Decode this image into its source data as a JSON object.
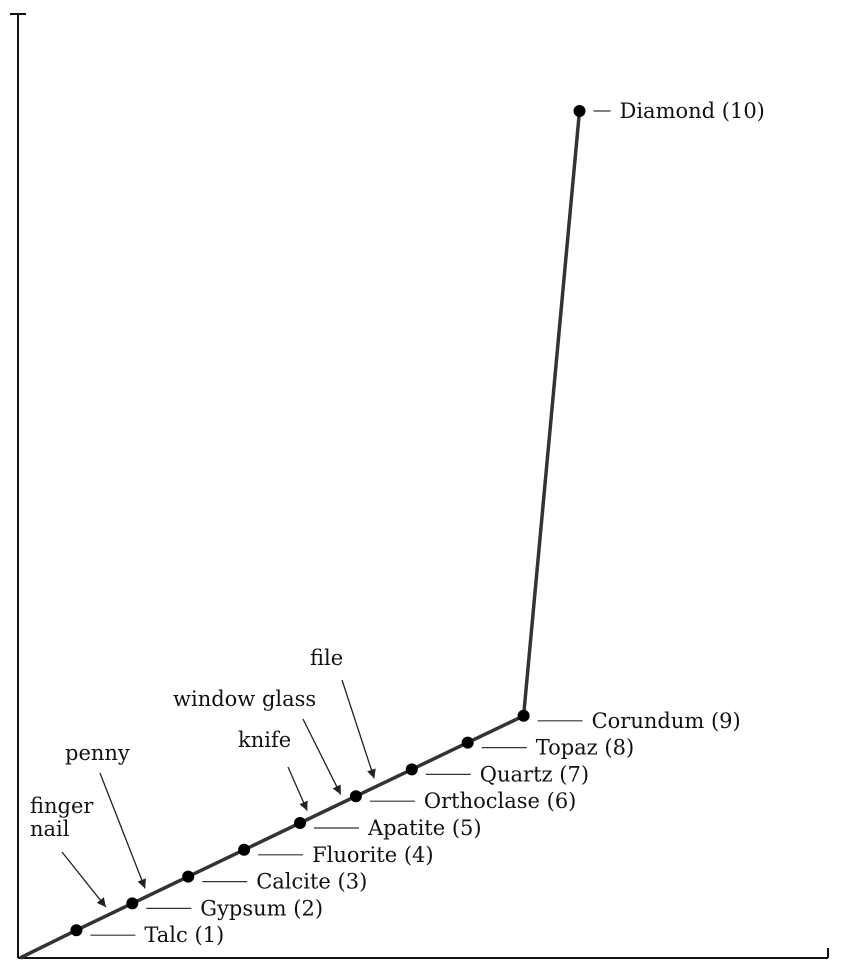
{
  "chart_data": {
    "type": "line",
    "title": "",
    "xlabel": "",
    "ylabel": "",
    "grid": false,
    "x": [
      1,
      2,
      3,
      4,
      5,
      6,
      7,
      8,
      9,
      10
    ],
    "points": [
      {
        "x": 1,
        "label": "Talc (1)"
      },
      {
        "x": 2,
        "label": "Gypsum (2)"
      },
      {
        "x": 3,
        "label": "Calcite (3)"
      },
      {
        "x": 4,
        "label": "Fluorite (4)"
      },
      {
        "x": 5,
        "label": "Apatite (5)"
      },
      {
        "x": 6,
        "label": "Orthoclase (6)"
      },
      {
        "x": 7,
        "label": "Quartz (7)"
      },
      {
        "x": 8,
        "label": "Topaz (8)"
      },
      {
        "x": 9,
        "label": "Corundum (9)"
      },
      {
        "x": 10,
        "label": "Diamond (10)"
      }
    ],
    "annotations": [
      {
        "text": [
          "finger",
          "nail"
        ],
        "x": 1.6
      },
      {
        "text": [
          "penny"
        ],
        "x": 2.3
      },
      {
        "text": [
          "knife"
        ],
        "x": 5.2
      },
      {
        "text": [
          "window glass"
        ],
        "x": 5.8
      },
      {
        "text": [
          "file"
        ],
        "x": 6.4
      }
    ]
  }
}
